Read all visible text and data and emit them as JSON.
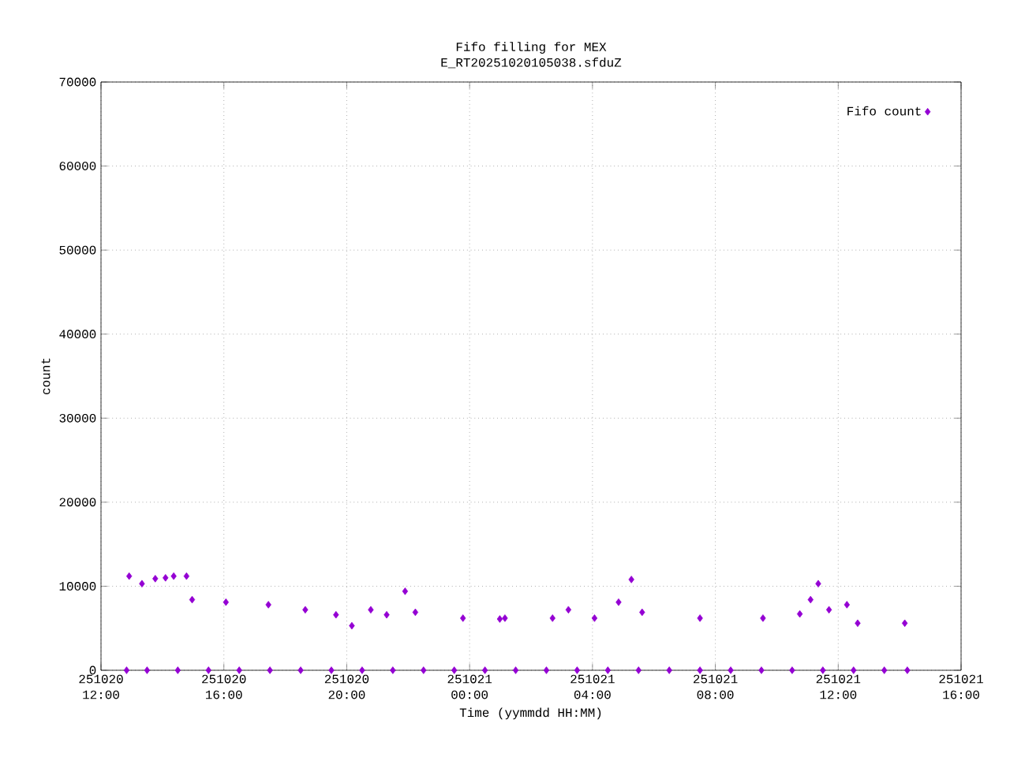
{
  "chart_data": {
    "type": "scatter",
    "title": "Fifo filling for MEX",
    "subtitle": "E_RT20251020105038.sfduZ",
    "xlabel": "Time (yymmdd HH:MM)",
    "ylabel": "count",
    "xlim": [
      "2025-10-20T12:00",
      "2025-10-21T16:00"
    ],
    "xticks": [
      {
        "value": "2025-10-20T12:00",
        "label": "251020 12:00"
      },
      {
        "value": "2025-10-20T16:00",
        "label": "251020 16:00"
      },
      {
        "value": "2025-10-20T20:00",
        "label": "251020 20:00"
      },
      {
        "value": "2025-10-21T00:00",
        "label": "251021 00:00"
      },
      {
        "value": "2025-10-21T04:00",
        "label": "251021 04:00"
      },
      {
        "value": "2025-10-21T08:00",
        "label": "251021 08:00"
      },
      {
        "value": "2025-10-21T12:00",
        "label": "251021 12:00"
      },
      {
        "value": "2025-10-21T16:00",
        "label": "251021 16:00"
      }
    ],
    "ylim": [
      0,
      70000
    ],
    "yticks": [
      0,
      10000,
      20000,
      30000,
      40000,
      50000,
      60000,
      70000
    ],
    "grid": true,
    "legend": "top right",
    "marker": "diamond",
    "series": [
      {
        "name": "Fifo count",
        "color": "#9400d3",
        "x": [
          "2025-10-20T12:55",
          "2025-10-20T13:20",
          "2025-10-20T13:46",
          "2025-10-20T14:06",
          "2025-10-20T14:22",
          "2025-10-20T14:47",
          "2025-10-20T14:58",
          "2025-10-20T16:04",
          "2025-10-20T17:27",
          "2025-10-20T18:39",
          "2025-10-20T19:39",
          "2025-10-20T20:10",
          "2025-10-20T20:47",
          "2025-10-20T21:18",
          "2025-10-20T21:54",
          "2025-10-20T22:14",
          "2025-10-20T23:47",
          "2025-10-21T00:59",
          "2025-10-21T01:09",
          "2025-10-21T02:42",
          "2025-10-21T03:13",
          "2025-10-21T04:04",
          "2025-10-21T04:51",
          "2025-10-21T05:16",
          "2025-10-21T05:37",
          "2025-10-21T07:30",
          "2025-10-21T09:33",
          "2025-10-21T10:45",
          "2025-10-21T11:06",
          "2025-10-21T11:21",
          "2025-10-21T11:42",
          "2025-10-21T12:17",
          "2025-10-21T12:38",
          "2025-10-21T14:10",
          "2025-10-20T12:50",
          "2025-10-20T13:30",
          "2025-10-20T14:30",
          "2025-10-20T15:30",
          "2025-10-20T16:30",
          "2025-10-20T17:30",
          "2025-10-20T18:30",
          "2025-10-20T19:30",
          "2025-10-20T20:30",
          "2025-10-20T21:30",
          "2025-10-20T22:30",
          "2025-10-20T23:30",
          "2025-10-21T00:30",
          "2025-10-21T01:30",
          "2025-10-21T02:30",
          "2025-10-21T03:30",
          "2025-10-21T04:30",
          "2025-10-21T05:30",
          "2025-10-21T06:30",
          "2025-10-21T07:30",
          "2025-10-21T08:30",
          "2025-10-21T09:30",
          "2025-10-21T10:30",
          "2025-10-21T11:30",
          "2025-10-21T12:30",
          "2025-10-21T13:30",
          "2025-10-21T14:15"
        ],
        "values": [
          11200,
          10300,
          10900,
          11000,
          11200,
          11200,
          8400,
          8100,
          7800,
          7200,
          6600,
          5300,
          7200,
          6600,
          9400,
          6900,
          6200,
          6100,
          6200,
          6200,
          7200,
          6200,
          8100,
          10800,
          6900,
          6200,
          6200,
          6700,
          8400,
          10300,
          7200,
          7800,
          5600,
          5600,
          0,
          0,
          0,
          0,
          0,
          0,
          0,
          0,
          0,
          0,
          0,
          0,
          0,
          0,
          0,
          0,
          0,
          0,
          0,
          0,
          0,
          0,
          0,
          0,
          0,
          0,
          0
        ]
      }
    ]
  }
}
